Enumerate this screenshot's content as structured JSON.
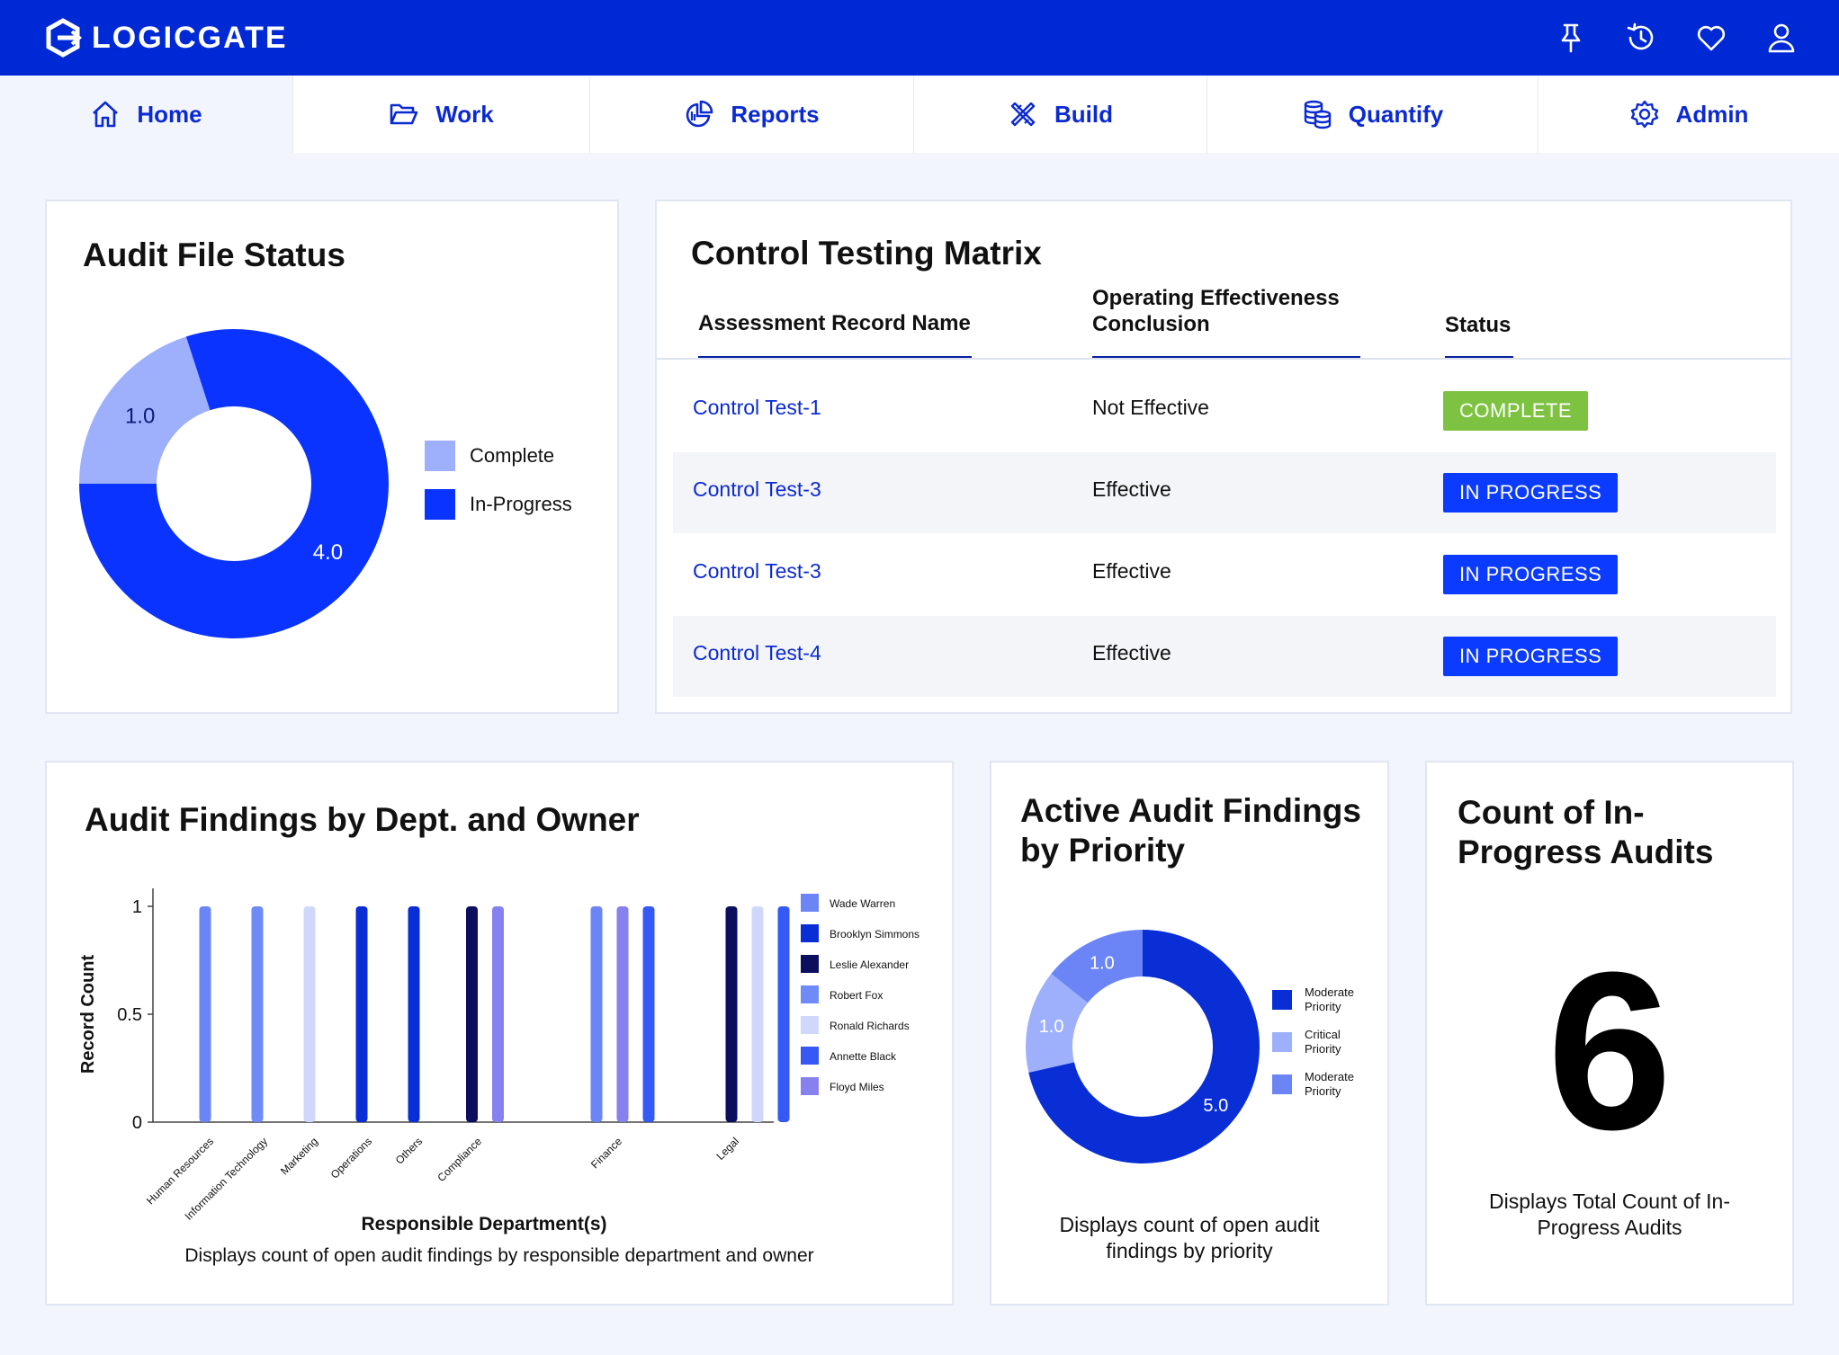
{
  "app": {
    "name": "LOGICGATE",
    "colors": {
      "primary": "#0029d6",
      "accent": "#0b3bff",
      "complete": "#7dc241"
    }
  },
  "top_icons": [
    "pin-icon",
    "history-icon",
    "heart-icon",
    "user-icon"
  ],
  "nav": {
    "items": [
      {
        "label": "Home",
        "icon": "home-icon",
        "active": true
      },
      {
        "label": "Work",
        "icon": "folder-icon"
      },
      {
        "label": "Reports",
        "icon": "pie-chart-icon"
      },
      {
        "label": "Build",
        "icon": "tools-icon"
      },
      {
        "label": "Quantify",
        "icon": "coins-icon"
      },
      {
        "label": "Admin",
        "icon": "gear-icon"
      }
    ]
  },
  "audit_file_status": {
    "title": "Audit File Status",
    "chart": {
      "type": "pie",
      "slices": [
        {
          "label": "Complete",
          "value": 1.0,
          "display": "1.0",
          "color": "#9eb0fb"
        },
        {
          "label": "In-Progress",
          "value": 4.0,
          "display": "4.0",
          "color": "#0b33ff"
        }
      ]
    }
  },
  "control_testing_matrix": {
    "title": "Control Testing Matrix",
    "headers": {
      "name": "Assessment Record Name",
      "conclusion": "Operating Effectiveness Conclusion",
      "status": "Status"
    },
    "rows": [
      {
        "name": "Control Test-1",
        "conclusion": "Not Effective",
        "status": "COMPLETE",
        "kind": "complete"
      },
      {
        "name": "Control Test-3",
        "conclusion": "Effective",
        "status": "IN PROGRESS",
        "kind": "inprog"
      },
      {
        "name": "Control Test-3",
        "conclusion": "Effective",
        "status": "IN PROGRESS",
        "kind": "inprog"
      },
      {
        "name": "Control Test-4",
        "conclusion": "Effective",
        "status": "IN PROGRESS",
        "kind": "inprog"
      }
    ]
  },
  "findings_by_dept": {
    "title": "Audit Findings by Dept. and Owner",
    "caption": "Displays count of open audit findings by responsible department and owner",
    "chart_data": {
      "type": "bar",
      "xlabel": "Responsible Department(s)",
      "ylabel": "Record Count",
      "ylim": [
        0,
        1
      ],
      "yticks": [
        "0",
        "0.5",
        "1"
      ],
      "legend_position": "right",
      "owners": [
        {
          "name": "Wade Warren",
          "color": "#6b85f7"
        },
        {
          "name": "Brooklyn Simmons",
          "color": "#0a2ed6"
        },
        {
          "name": "Leslie Alexander",
          "color": "#0b0f5e"
        },
        {
          "name": "Robert Fox",
          "color": "#6f8bf8"
        },
        {
          "name": "Ronald Richards",
          "color": "#cfd8fb"
        },
        {
          "name": "Annette Black",
          "color": "#3559f5"
        },
        {
          "name": "Floyd Miles",
          "color": "#8781ef"
        }
      ],
      "categories": [
        "Human Resources",
        "Information Technology",
        "Marketing",
        "Operations",
        "Others",
        "Compliance",
        "Finance",
        "Legal"
      ],
      "bars": [
        {
          "category": "Human Resources",
          "owner": "Wade Warren",
          "value": 1
        },
        {
          "category": "Information Technology",
          "owner": "Robert Fox",
          "value": 1
        },
        {
          "category": "Marketing",
          "owner": "Ronald Richards",
          "value": 1
        },
        {
          "category": "Operations",
          "owner": "Brooklyn Simmons",
          "value": 1
        },
        {
          "category": "Others",
          "owner": "Brooklyn Simmons",
          "value": 1
        },
        {
          "category": "Compliance",
          "owner": "Leslie Alexander",
          "value": 1
        },
        {
          "category": "Compliance",
          "owner": "Floyd Miles",
          "value": 1
        },
        {
          "category": "Finance",
          "owner": "Wade Warren",
          "value": 1
        },
        {
          "category": "Finance",
          "owner": "Floyd Miles",
          "value": 1
        },
        {
          "category": "Finance",
          "owner": "Annette Black",
          "value": 1
        },
        {
          "category": "Legal",
          "owner": "Leslie Alexander",
          "value": 1
        },
        {
          "category": "Legal",
          "owner": "Ronald Richards",
          "value": 1
        },
        {
          "category": "Legal",
          "owner": "Annette Black",
          "value": 1
        }
      ]
    }
  },
  "priority": {
    "title_line1": "Active Audit Findings",
    "title_line2": "by Priority",
    "caption_line1": "Displays count of open audit",
    "caption_line2": "findings by priority",
    "chart": {
      "type": "pie",
      "slices": [
        {
          "label": "Moderate Priority",
          "value": 5.0,
          "display": "5.0",
          "color": "#0a2ed6"
        },
        {
          "label": "Critical Priority",
          "value": 1.0,
          "display": "1.0",
          "color": "#9eb0fb"
        },
        {
          "label": "Moderate Priority",
          "value": 1.0,
          "display": "1.0",
          "color": "#6b85f7"
        }
      ],
      "legend": [
        {
          "line1": "Moderate",
          "line2": "Priority",
          "color": "#0a2ed6"
        },
        {
          "line1": "Critical",
          "line2": "Priority",
          "color": "#9eb0fb"
        },
        {
          "line1": "Moderate",
          "line2": "Priority",
          "color": "#6b85f7"
        }
      ]
    }
  },
  "count_audits": {
    "title_line1": "Count of In-",
    "title_line2": "Progress Audits",
    "value": "6",
    "caption_line1": "Displays Total Count of In-",
    "caption_line2": "Progress Audits"
  }
}
